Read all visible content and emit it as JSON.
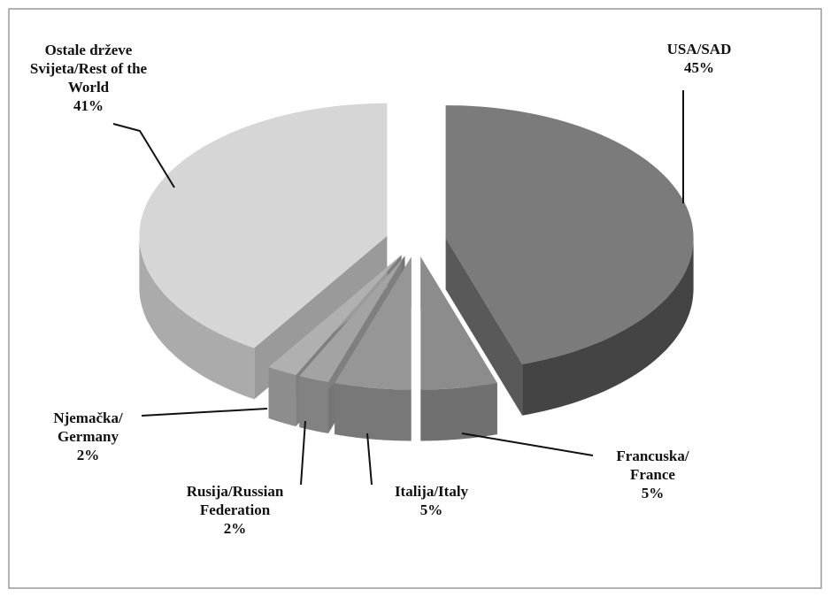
{
  "chart_data": {
    "type": "pie3d",
    "categories": [
      "USA/SAD",
      "Francuska/ France",
      "Italija/Italy",
      "Rusija/Russian Federation",
      "Njemačka/ Germany",
      "Ostale drževe Svijeta/Rest of the World"
    ],
    "values": [
      45,
      5,
      5,
      2,
      2,
      41
    ],
    "value_labels": [
      "45%",
      "5%",
      "5%",
      "2%",
      "2%",
      "41%"
    ],
    "colors": [
      "#7b7b7b",
      "#8c8c8c",
      "#969696",
      "#a3a3a3",
      "#b0b0b0",
      "#d6d6d6"
    ]
  }
}
